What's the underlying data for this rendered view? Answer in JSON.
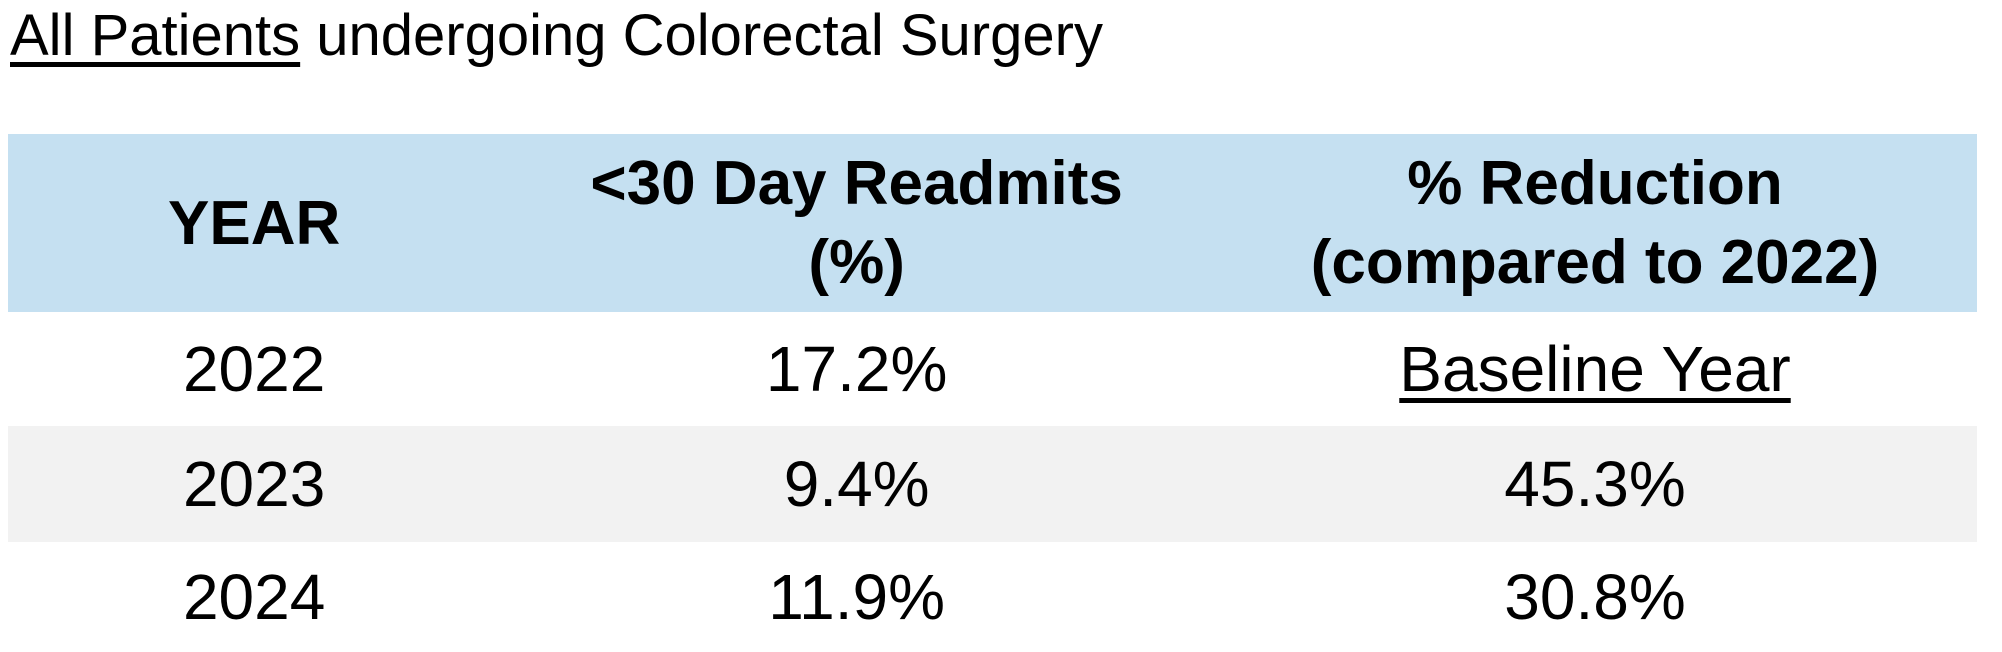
{
  "title": {
    "underlined": "All Patients",
    "rest": " undergoing Colorectal Surgery"
  },
  "table": {
    "columns": [
      {
        "lines": [
          "YEAR",
          ""
        ]
      },
      {
        "lines": [
          "<30 Day Readmits",
          "(%)"
        ]
      },
      {
        "lines": [
          "% Reduction",
          "(compared to 2022)"
        ]
      }
    ],
    "rows": [
      {
        "year": "2022",
        "readmits": "17.2%",
        "reduction": "Baseline Year"
      },
      {
        "year": "2023",
        "readmits": "9.4%",
        "reduction": "45.3%"
      },
      {
        "year": "2024",
        "readmits": "11.9%",
        "reduction": "30.8%"
      }
    ]
  },
  "colors": {
    "header_bg": "#C5E0F1",
    "banded_row_bg": "#F2F2F2",
    "row_bg": "#FFFFFF",
    "text": "#000000"
  },
  "chart_data": {
    "type": "table",
    "title": "All Patients undergoing Colorectal Surgery",
    "columns": [
      "YEAR",
      "<30 Day Readmits (%)",
      "% Reduction (compared to 2022)"
    ],
    "rows": [
      [
        "2022",
        "17.2%",
        "Baseline Year"
      ],
      [
        "2023",
        "9.4%",
        "45.3%"
      ],
      [
        "2024",
        "11.9%",
        "30.8%"
      ]
    ],
    "notes": {
      "baseline_year": 2022,
      "readmit_rate_pct": {
        "2022": 17.2,
        "2023": 9.4,
        "2024": 11.9
      },
      "reduction_vs_2022_pct": {
        "2023": 45.3,
        "2024": 30.8
      }
    }
  }
}
